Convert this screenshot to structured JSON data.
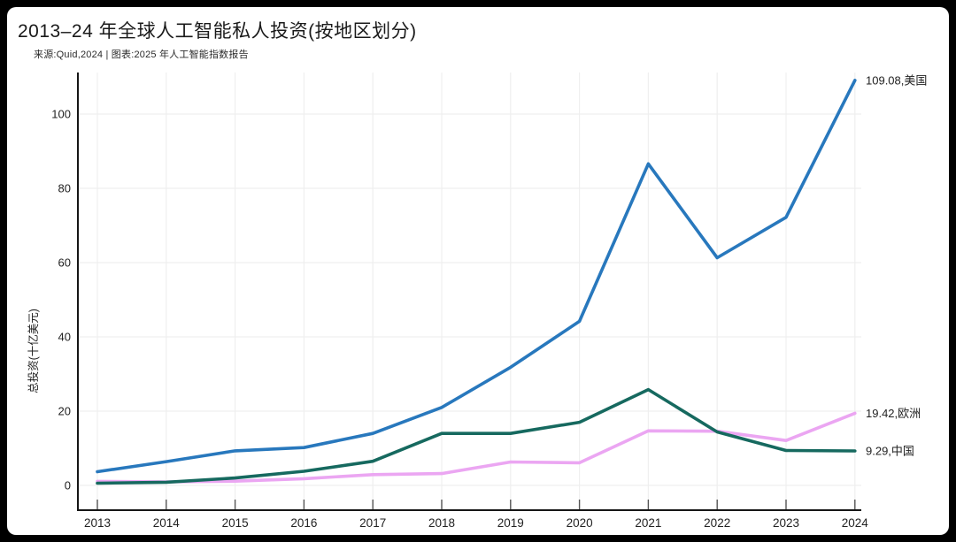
{
  "page": {
    "title": "2013–24 年全球人工智能私人投资(按地区划分)",
    "subtitle": "来源:Quid,2024 | 图表:2025 年人工智能指数报告"
  },
  "chart_data": {
    "type": "line",
    "title": "2013–24 年全球人工智能私人投资(按地区划分)",
    "source": "来源:Quid,2024 | 图表:2025 年人工智能指数报告",
    "xlabel": "",
    "ylabel": "总投资(十亿美元)",
    "categories": [
      "2013",
      "2014",
      "2015",
      "2016",
      "2017",
      "2018",
      "2019",
      "2020",
      "2021",
      "2022",
      "2023",
      "2024"
    ],
    "yticks": [
      0,
      20,
      40,
      60,
      80,
      100
    ],
    "ylim": [
      -6.5,
      111.5
    ],
    "grid": true,
    "legend_position": "end-of-line-labels",
    "colors": {
      "grid": "#efefef",
      "spine": "#161616",
      "tick": "#555555",
      "tick_label": "#222222"
    },
    "series": [
      {
        "id": "us",
        "name": "美国",
        "color": "#2878bd",
        "end_label": "109.08,美国",
        "values": [
          3.7,
          6.4,
          9.3,
          10.2,
          14.0,
          21.0,
          31.8,
          44.2,
          86.6,
          61.3,
          72.2,
          109.08
        ]
      },
      {
        "id": "europe",
        "name": "欧洲",
        "color": "#eba6f2",
        "end_label": "19.42,欧洲",
        "values": [
          1.1,
          0.95,
          1.15,
          1.8,
          2.9,
          3.2,
          6.3,
          6.1,
          14.7,
          14.6,
          12.1,
          19.42
        ]
      },
      {
        "id": "china",
        "name": "中国",
        "color": "#16695f",
        "end_label": "9.29,中国",
        "values": [
          0.6,
          0.85,
          2.0,
          3.8,
          6.5,
          14.0,
          14.0,
          17.0,
          25.8,
          14.4,
          9.4,
          9.29
        ]
      }
    ]
  }
}
